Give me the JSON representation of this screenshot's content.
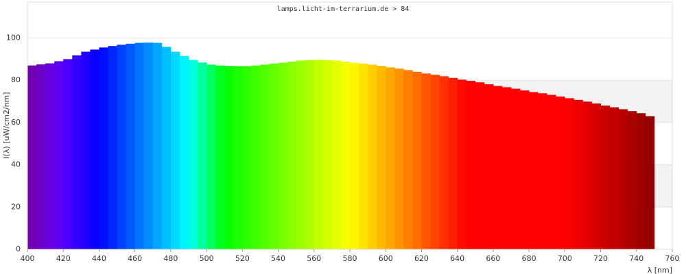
{
  "chart_data": {
    "type": "histogram",
    "title": "lamps.licht-im-terrarium.de > 84",
    "y_label": "I(λ)  [uW/cm2/nm]",
    "x_label": "λ [nm]",
    "bins": [
      400,
      405,
      410,
      415,
      420,
      425,
      430,
      435,
      440,
      445,
      450,
      455,
      460,
      465,
      470,
      475,
      480,
      485,
      490,
      495,
      500,
      505,
      510,
      515,
      520,
      525,
      530,
      535,
      540,
      545,
      550,
      555,
      560,
      565,
      570,
      575,
      580,
      585,
      590,
      595,
      600,
      605,
      610,
      615,
      620,
      625,
      630,
      635,
      640,
      645,
      650,
      655,
      660,
      665,
      670,
      675,
      680,
      685,
      690,
      695,
      700,
      705,
      710,
      715,
      720,
      725,
      730,
      735,
      740,
      745,
      750
    ],
    "values": [
      87,
      87.5,
      88,
      89,
      90,
      91.8,
      93.5,
      94.5,
      95.5,
      96.2,
      96.8,
      97.3,
      97.7,
      97.8,
      97.7,
      95.8,
      93.5,
      91.5,
      89.6,
      88.4,
      87.4,
      87,
      86.7,
      86.7,
      86.7,
      87,
      87.4,
      87.9,
      88.3,
      88.8,
      89.3,
      89.5,
      89.6,
      89.5,
      89.3,
      88.8,
      88.3,
      87.9,
      87.4,
      86.8,
      86.1,
      85.5,
      84.8,
      84,
      83.2,
      82.6,
      81.9,
      81.1,
      80.3,
      79.7,
      79,
      78.1,
      77.3,
      76.7,
      76,
      75.2,
      74.4,
      73.8,
      73.1,
      72.3,
      71.5,
      70.7,
      69.9,
      69,
      68,
      67.2,
      66.3,
      65.4,
      64.4,
      63
    ],
    "color": "wavelength",
    "xlim": [
      400,
      760
    ],
    "xticks": [
      400,
      420,
      440,
      460,
      480,
      500,
      520,
      540,
      560,
      580,
      600,
      620,
      640,
      660,
      680,
      700,
      720,
      740,
      760
    ],
    "ylim": [
      0,
      117
    ],
    "yticks": [
      0,
      20,
      40,
      60,
      80,
      100
    ],
    "grid": true,
    "banded": true
  }
}
